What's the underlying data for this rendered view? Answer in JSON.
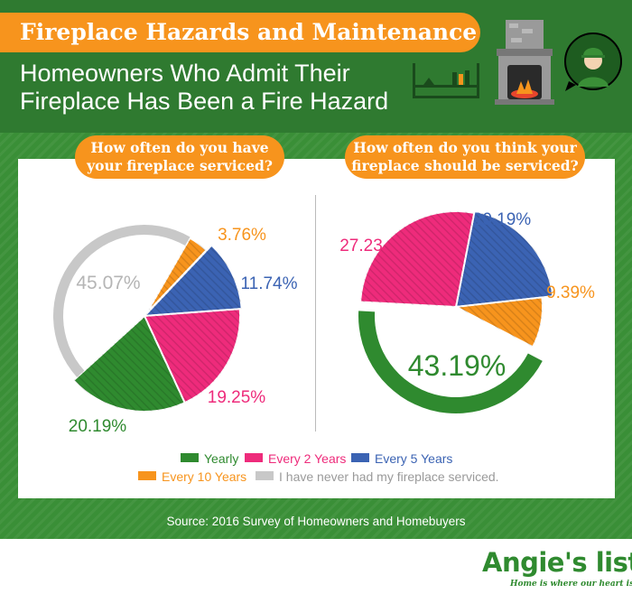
{
  "header": {
    "title": "Fireplace Hazards and Maintenance",
    "subtitle_line1": "Homeowners Who Admit Their",
    "subtitle_line2": "Fireplace Has Been a Fire Hazard"
  },
  "colors": {
    "green": "#2f8a2f",
    "pink": "#ee2b7b",
    "blue": "#3b63b3",
    "orange": "#f7941d",
    "gray": "#c8c8c8"
  },
  "icons": [
    "fireplace-icon",
    "bookshelf-icon",
    "homeowner-avatar-icon"
  ],
  "left_question": {
    "line1": "How often do you have",
    "line2": "your fireplace serviced?"
  },
  "right_question": {
    "line1": "How often do you think your",
    "line2": "fireplace should be serviced?"
  },
  "chart_data": [
    {
      "type": "pie",
      "title": "How often do you have your fireplace serviced?",
      "categories": [
        "Every 10 Years",
        "Every 5 Years",
        "Every 2 Years",
        "Yearly",
        "I have never had my fireplace serviced."
      ],
      "values": [
        3.76,
        11.74,
        19.25,
        20.19,
        45.07
      ],
      "labels": [
        "3.76%",
        "11.74%",
        "19.25%",
        "20.19%",
        "45.07%"
      ]
    },
    {
      "type": "pie",
      "title": "How often do you think your fireplace should be serviced?",
      "categories": [
        "Every 5 Years",
        "Every 10 Years",
        "Yearly",
        "Every 2 Years"
      ],
      "values": [
        20.19,
        9.39,
        43.19,
        27.23
      ],
      "labels": [
        "20.19%",
        "9.39%",
        "43.19%",
        "27.23"
      ]
    }
  ],
  "legend": {
    "items": [
      {
        "label": "Yearly",
        "color": "#2f8a2f"
      },
      {
        "label": "Every 2 Years",
        "color": "#ee2b7b"
      },
      {
        "label": "Every 5 Years",
        "color": "#3b63b3"
      },
      {
        "label": "Every 10 Years",
        "color": "#f7941d"
      },
      {
        "label": "I have never had my fireplace serviced.",
        "color": "#c8c8c8"
      }
    ]
  },
  "source": "Source: 2016 Survey of Homeowners and Homebuyers",
  "brand": {
    "logo": "Angie's list",
    "tagline": "Home is where our heart is."
  }
}
